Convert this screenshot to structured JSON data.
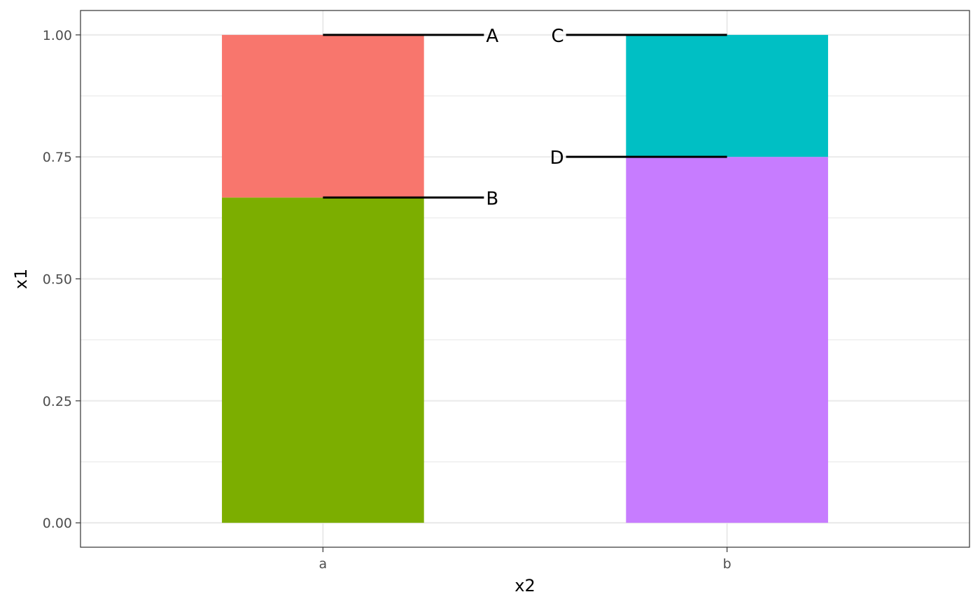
{
  "chart_data": {
    "type": "bar",
    "stacked": true,
    "x_axis": {
      "label": "x2",
      "categories": [
        "a",
        "b"
      ]
    },
    "y_axis": {
      "label": "x1",
      "lim": [
        -0.05,
        1.05
      ],
      "ticks": [
        0,
        0.25,
        0.5,
        0.75,
        1
      ],
      "tick_labels": [
        "0.00",
        "0.25",
        "0.50",
        "0.75",
        "1.00"
      ]
    },
    "grid": true,
    "legend": "none",
    "bars": [
      {
        "category": "a",
        "segments": [
          {
            "label": "B",
            "value": 0.6667,
            "color": "#7CAE00"
          },
          {
            "label": "A",
            "value": 0.3333,
            "color": "#F8766D"
          }
        ]
      },
      {
        "category": "b",
        "segments": [
          {
            "label": "D",
            "value": 0.75,
            "color": "#C77CFF"
          },
          {
            "label": "C",
            "value": 0.25,
            "color": "#00BFC4"
          }
        ]
      }
    ],
    "annotations": [
      {
        "text": "A",
        "category": "a",
        "y": 1.0,
        "side": "right"
      },
      {
        "text": "B",
        "category": "a",
        "y": 0.6667,
        "side": "right"
      },
      {
        "text": "C",
        "category": "b",
        "y": 1.0,
        "side": "left"
      },
      {
        "text": "D",
        "category": "b",
        "y": 0.75,
        "side": "left"
      }
    ]
  }
}
